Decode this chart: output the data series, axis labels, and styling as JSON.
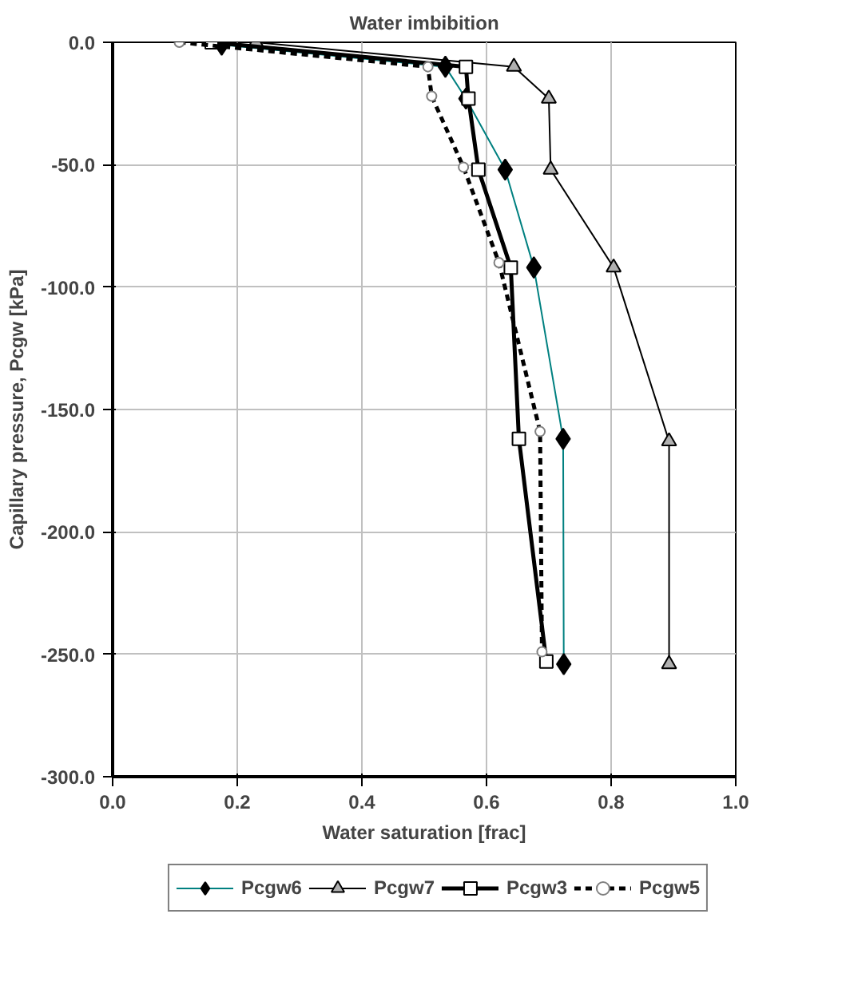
{
  "chart_data": {
    "type": "line",
    "title": "Water imbibition",
    "xlabel": "Water saturation [frac]",
    "ylabel": "Capillary pressure, Pcgw [kPa]",
    "xlim": [
      0.0,
      1.0
    ],
    "ylim": [
      -300.0,
      0.0
    ],
    "xticks": [
      {
        "value": 0,
        "label": "0.0"
      },
      {
        "value": 0.2,
        "label": "0.2"
      },
      {
        "value": 0.4,
        "label": "0.4"
      },
      {
        "value": 0.6,
        "label": "0.6"
      },
      {
        "value": 0.8,
        "label": "0.8"
      },
      {
        "value": 1,
        "label": "1.0"
      }
    ],
    "yticks": [
      {
        "value": 0,
        "label": "0.0"
      },
      {
        "value": -50,
        "label": "-50.0"
      },
      {
        "value": -100,
        "label": "-100.0"
      },
      {
        "value": -150,
        "label": "-150.0"
      },
      {
        "value": -200,
        "label": "-200.0"
      },
      {
        "value": -250,
        "label": "-250.0"
      },
      {
        "value": -300,
        "label": "-300.0"
      }
    ],
    "grid": true,
    "legend": "bottom",
    "series": [
      {
        "name": "Pcgw6",
        "color": "#008080",
        "marker": "diamond",
        "line_style": "solid",
        "x": [
          0.175,
          0.534,
          0.567,
          0.63,
          0.676,
          0.723,
          0.724
        ],
        "values": [
          -1,
          -10,
          -23,
          -52,
          -92,
          -162,
          -254
        ]
      },
      {
        "name": "Pcgw7",
        "color": "#000000",
        "marker": "triangle",
        "line_style": "solid",
        "x": [
          0.23,
          0.644,
          0.7,
          0.703,
          0.804,
          0.893,
          0.893
        ],
        "values": [
          0,
          -10,
          -23,
          -52,
          -92,
          -163,
          -254
        ]
      },
      {
        "name": "Pcgw3",
        "color": "#000000",
        "marker": "square",
        "line_style": "solid",
        "x": [
          0.159,
          0.567,
          0.571,
          0.587,
          0.639,
          0.652,
          0.696
        ],
        "values": [
          0,
          -10,
          -23,
          -52,
          -92,
          -162,
          -253
        ]
      },
      {
        "name": "Pcgw5",
        "color": "#000000",
        "marker": "circle",
        "line_style": "dashed",
        "x": [
          0.107,
          0.506,
          0.512,
          0.563,
          0.62,
          0.686,
          0.689
        ],
        "values": [
          0,
          -10,
          -22,
          -51,
          -90,
          -159,
          -249
        ]
      }
    ]
  }
}
